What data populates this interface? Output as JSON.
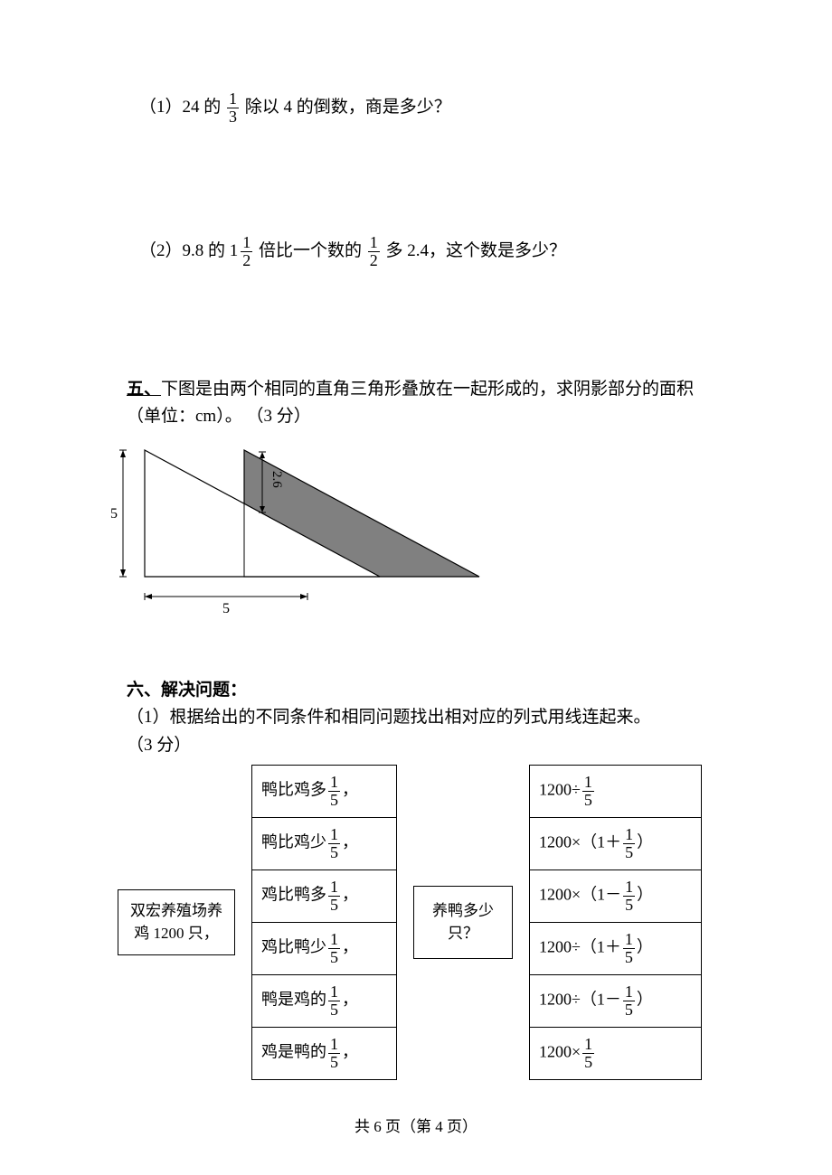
{
  "q1": {
    "prefix": "（1）24 的",
    "frac_num": "1",
    "frac_den": "3",
    "suffix": "除以 4 的倒数，商是多少？"
  },
  "q2": {
    "prefix": "（2）9.8 的",
    "mixed_whole": "1",
    "mixed_num": "1",
    "mixed_den": "2",
    "mid": "倍比一个数的",
    "frac2_num": "1",
    "frac2_den": "2",
    "suffix": "多 2.4，这个数是多少？"
  },
  "section5": {
    "label": "五、",
    "text": "下图是由两个相同的直角三角形叠放在一起形成的，求阴影部分的面积（单位：cm）。",
    "points": "（3 分）"
  },
  "diagram": {
    "left_label": "5",
    "bottom_label": "5",
    "height_label": "2.6",
    "shade_color": "#808080",
    "line_color": "#000000"
  },
  "section6": {
    "label": "六、",
    "title": "解决问题：",
    "sub1": "（1）根据给出的不同条件和相同问题找出相对应的列式用线连起来。",
    "points": "（3 分）"
  },
  "match": {
    "left_line1": "双宏养殖场养",
    "left_line2": "鸡 1200 只，",
    "question": "养鸭多少只？",
    "conditions": [
      {
        "pre": "鸭比鸡多",
        "num": "1",
        "den": "5",
        "post": "，"
      },
      {
        "pre": "鸭比鸡少",
        "num": "1",
        "den": "5",
        "post": "，"
      },
      {
        "pre": "鸡比鸭多",
        "num": "1",
        "den": "5",
        "post": "，"
      },
      {
        "pre": "鸡比鸭少",
        "num": "1",
        "den": "5",
        "post": "，"
      },
      {
        "pre": "鸭是鸡的",
        "num": "1",
        "den": "5",
        "post": "，"
      },
      {
        "pre": "鸡是鸭的",
        "num": "1",
        "den": "5",
        "post": "，"
      }
    ],
    "expressions": [
      {
        "pre": "1200÷",
        "num": "1",
        "den": "5",
        "post": ""
      },
      {
        "pre": "1200×（1＋",
        "num": "1",
        "den": "5",
        "post": "）"
      },
      {
        "pre": "1200×（1－",
        "num": "1",
        "den": "5",
        "post": "）"
      },
      {
        "pre": "1200÷（1＋",
        "num": "1",
        "den": "5",
        "post": "）"
      },
      {
        "pre": "1200÷（1－",
        "num": "1",
        "den": "5",
        "post": "）"
      },
      {
        "pre": "1200×",
        "num": "1",
        "den": "5",
        "post": ""
      }
    ]
  },
  "footer": "共 6 页（第 4 页）"
}
